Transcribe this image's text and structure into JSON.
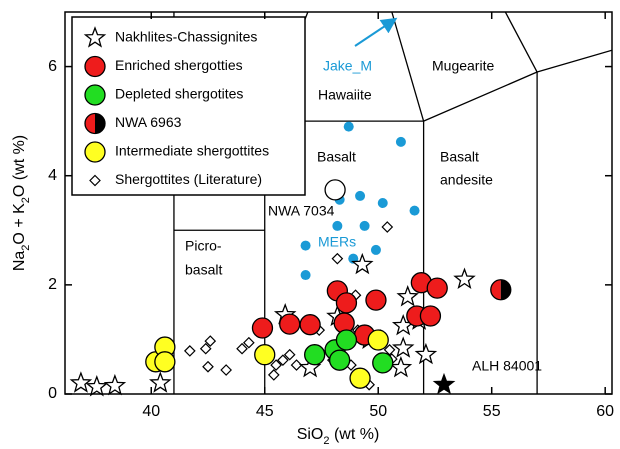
{
  "chart_data": {
    "type": "scatter",
    "x_label": "SiO2 (wt %)",
    "y_label": "Na2O + K2O (wt %)",
    "xlim": [
      36.2,
      60.3
    ],
    "ylim": [
      0,
      7
    ],
    "xticks": [
      40,
      45,
      50,
      55,
      60
    ],
    "yticks": [
      0,
      2,
      4,
      6
    ],
    "legend": "upper left",
    "annotations": [
      [
        "Picro-",
        "basalt"
      ],
      [
        "Basalt"
      ],
      [
        "Basalt",
        "andesite"
      ],
      [
        "Hawaiite"
      ],
      [
        "Mugearite"
      ],
      [
        "Jake_M"
      ]
    ],
    "field_lines": [
      {
        "x": [
          41,
          41
        ],
        "y": [
          0,
          7
        ]
      },
      {
        "x": [
          41,
          45
        ],
        "y": [
          3,
          3
        ]
      },
      {
        "x": [
          45,
          45
        ],
        "y": [
          0,
          5
        ]
      },
      {
        "x": [
          45,
          52
        ],
        "y": [
          5,
          5
        ]
      },
      {
        "x": [
          52,
          52
        ],
        "y": [
          0,
          5
        ]
      },
      {
        "x": [
          45,
          46.9
        ],
        "y": [
          5,
          7
        ]
      },
      {
        "x": [
          52,
          50.6
        ],
        "y": [
          5,
          7
        ]
      },
      {
        "x": [
          52,
          57
        ],
        "y": [
          5,
          5.9
        ]
      },
      {
        "x": [
          57,
          57
        ],
        "y": [
          0,
          5.9
        ]
      },
      {
        "x": [
          57,
          55.6
        ],
        "y": [
          5.9,
          7
        ]
      },
      {
        "x": [
          57,
          60.3
        ],
        "y": [
          5.9,
          6.3
        ]
      }
    ],
    "series": [
      {
        "name": "MERs",
        "marker": "dot",
        "color": "#1a9ad6",
        "in_legend": false,
        "x": [
          48.7,
          51.0,
          49.2,
          50.2,
          51.6,
          48.3,
          48.2,
          49.4,
          49.9,
          48.9,
          46.8,
          46.8
        ],
        "values": [
          4.9,
          4.62,
          3.63,
          3.5,
          3.36,
          3.56,
          3.08,
          3.08,
          2.64,
          2.48,
          2.72,
          2.18
        ]
      },
      {
        "name": "Shergottites (Literature)",
        "marker": "diamond",
        "color": "#ffffff",
        "in_legend": true,
        "x": [
          41.7,
          42.4,
          42.6,
          42.5,
          43.3,
          44.0,
          44.3,
          45.4,
          45.5,
          45.8,
          46.1,
          46.4,
          47.4,
          48.0,
          48.5,
          48.2,
          49.0,
          49.1,
          50.1,
          50.5,
          50.6,
          50.4,
          49.6,
          48.8
        ],
        "values": [
          0.79,
          0.83,
          0.97,
          0.5,
          0.44,
          0.83,
          0.94,
          0.35,
          0.53,
          0.62,
          0.72,
          0.53,
          1.17,
          0.62,
          1.72,
          2.48,
          1.81,
          1.17,
          1.08,
          0.81,
          0.64,
          3.06,
          0.17,
          0.53
        ]
      },
      {
        "name": "Nakhlites-Chassignites",
        "marker": "star",
        "color": "#ffffff",
        "in_legend": true,
        "x": [
          36.9,
          37.6,
          38.4,
          40.4,
          45.9,
          47.0,
          48.2,
          49.3,
          51.1,
          51.0,
          51.3,
          51.1,
          52.1,
          53.8,
          49.6,
          51.8
        ],
        "values": [
          0.2,
          0.13,
          0.15,
          0.2,
          1.45,
          0.48,
          1.42,
          2.37,
          0.84,
          0.48,
          1.78,
          1.25,
          0.72,
          2.1,
          1.0,
          1.35
        ]
      },
      {
        "name": "Enriched shergotties",
        "marker": "circle",
        "color": "#ee1c1c",
        "in_legend": true,
        "x": [
          44.9,
          46.1,
          47.0,
          48.2,
          48.6,
          48.5,
          49.9,
          51.9,
          52.6,
          51.7,
          52.3,
          49.4
        ],
        "values": [
          1.21,
          1.28,
          1.27,
          1.89,
          1.67,
          1.3,
          1.72,
          2.04,
          1.94,
          1.43,
          1.43,
          1.08
        ]
      },
      {
        "name": "Depleted shergotites",
        "marker": "circle",
        "color": "#22dd22",
        "in_legend": true,
        "x": [
          47.2,
          48.1,
          48.6,
          48.3,
          50.2
        ],
        "values": [
          0.72,
          0.81,
          0.99,
          0.62,
          0.57
        ]
      },
      {
        "name": "NWA 6963",
        "marker": "half",
        "color": "#ee1c1c",
        "in_legend": true,
        "x": [
          55.4
        ],
        "values": [
          1.91
        ]
      },
      {
        "name": "Intermediate shergottites",
        "marker": "circle",
        "color": "#ffff22",
        "in_legend": true,
        "x": [
          40.2,
          40.6,
          40.6,
          45.0,
          49.2,
          50.0
        ],
        "values": [
          0.59,
          0.86,
          0.59,
          0.72,
          0.29,
          0.99
        ]
      },
      {
        "name": "NWA 7034",
        "marker": "circle",
        "color": "#ffffff",
        "in_legend": false,
        "x": [
          48.1
        ],
        "values": [
          3.74
        ]
      },
      {
        "name": "ALH 84001",
        "marker": "star",
        "color": "#000000",
        "in_legend": false,
        "x": [
          52.9
        ],
        "values": [
          0.17
        ]
      }
    ]
  }
}
